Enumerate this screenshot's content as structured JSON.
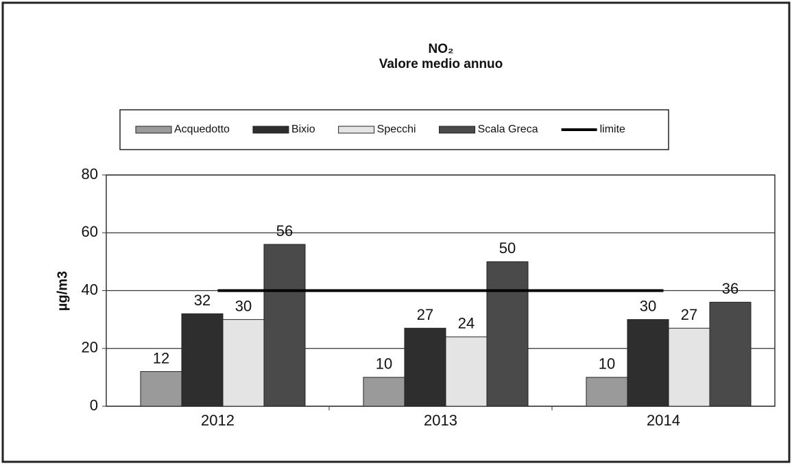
{
  "chart_data": {
    "type": "bar",
    "title": "NO₂",
    "subtitle": "Valore medio annuo",
    "y_label": "µg/m3",
    "categories": [
      "2012",
      "2013",
      "2014"
    ],
    "series": [
      {
        "name": "Acquedotto",
        "color": "#9a9a9a",
        "values": [
          12,
          10,
          10
        ]
      },
      {
        "name": "Bixio",
        "color": "#2e2e2e",
        "values": [
          32,
          27,
          30
        ]
      },
      {
        "name": "Specchi",
        "color": "#e4e4e4",
        "values": [
          30,
          24,
          27
        ]
      },
      {
        "name": "Scala Greca",
        "color": "#4a4a4a",
        "values": [
          56,
          50,
          36
        ]
      },
      {
        "name": "limite",
        "color": "#000000",
        "type": "line",
        "values": [
          40,
          40,
          40
        ]
      }
    ],
    "ylim": [
      0,
      80
    ],
    "yticks": [
      0,
      20,
      40,
      60,
      80
    ],
    "grid": true
  }
}
